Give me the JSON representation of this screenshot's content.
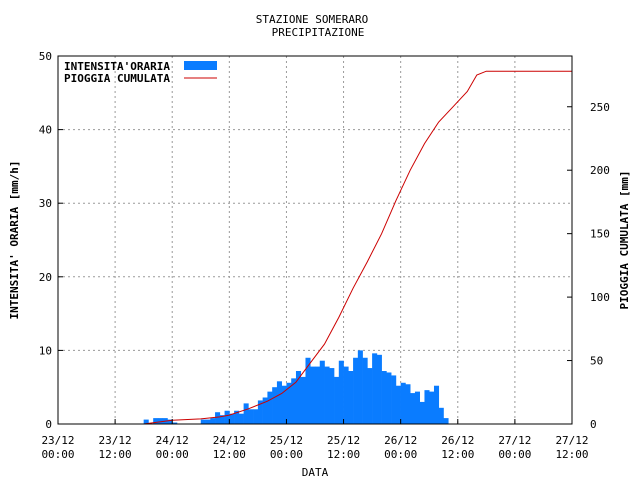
{
  "chart_data": {
    "type": "bar+line",
    "title": "STAZIONE SOMERARO",
    "subtitle": "PRECIPITAZIONE",
    "xlabel": "DATA",
    "ylabel_left": "INTENSITA' ORARIA [mm/h]",
    "ylabel_right": "PIOGGIA CUMULATA [mm]",
    "ylim_left": [
      0,
      50
    ],
    "yticks_left": [
      0,
      10,
      20,
      30,
      40,
      50
    ],
    "ylim_right": [
      0,
      290
    ],
    "yticks_right": [
      0,
      50,
      100,
      150,
      200,
      250
    ],
    "xlim_hours": [
      0,
      96
    ],
    "x_ticks": [
      {
        "hour": 0,
        "line1": "23/12",
        "line2": "00:00"
      },
      {
        "hour": 12,
        "line1": "23/12",
        "line2": "12:00"
      },
      {
        "hour": 24,
        "line1": "24/12",
        "line2": "00:00"
      },
      {
        "hour": 36,
        "line1": "24/12",
        "line2": "12:00"
      },
      {
        "hour": 48,
        "line1": "25/12",
        "line2": "00:00"
      },
      {
        "hour": 60,
        "line1": "25/12",
        "line2": "12:00"
      },
      {
        "hour": 72,
        "line1": "26/12",
        "line2": "00:00"
      },
      {
        "hour": 84,
        "line1": "26/12",
        "line2": "12:00"
      },
      {
        "hour": 96,
        "line1": "27/12",
        "line2": "00:00"
      },
      {
        "hour": 108,
        "line1": "27/12",
        "line2": "12:00"
      }
    ],
    "grid": true,
    "legend_position": "top-left",
    "series": [
      {
        "name": "INTENSITA'ORARIA",
        "type": "bar",
        "color": "#0a7cff",
        "start_hour": 18,
        "values": [
          0.6,
          0,
          0.8,
          0.8,
          0.8,
          0.6,
          0.2,
          0,
          0,
          0,
          0,
          0,
          0.6,
          0.6,
          0.8,
          1.6,
          1.2,
          1.8,
          1.4,
          1.8,
          1.4,
          2.8,
          2.0,
          2.0,
          3.2,
          3.6,
          4.4,
          5.0,
          5.8,
          5.2,
          5.6,
          6.2,
          7.2,
          6.4,
          9.0,
          7.8,
          7.8,
          8.6,
          7.8,
          7.6,
          6.4,
          8.6,
          7.8,
          7.2,
          9.0,
          10.0,
          9.0,
          7.6,
          9.6,
          9.4,
          7.2,
          7.0,
          6.6,
          5.2,
          5.6,
          5.4,
          4.2,
          4.4,
          3.0,
          4.6,
          4.4,
          5.2,
          2.2,
          0.8
        ]
      },
      {
        "name": "PIOGGIA CUMULATA",
        "type": "line",
        "color": "#cc0000",
        "points": [
          [
            18,
            0
          ],
          [
            24,
            3
          ],
          [
            30,
            4
          ],
          [
            34,
            5.6
          ],
          [
            36,
            7
          ],
          [
            40,
            12
          ],
          [
            44,
            18
          ],
          [
            47,
            24
          ],
          [
            50,
            33
          ],
          [
            53,
            48
          ],
          [
            56,
            63
          ],
          [
            59,
            84
          ],
          [
            62,
            107
          ],
          [
            65,
            128
          ],
          [
            68,
            150
          ],
          [
            71,
            176
          ],
          [
            74,
            200
          ],
          [
            77,
            221
          ],
          [
            80,
            238
          ],
          [
            83,
            250
          ],
          [
            86,
            262
          ],
          [
            88,
            275
          ],
          [
            90,
            278
          ],
          [
            100,
            278
          ],
          [
            108,
            278
          ]
        ]
      }
    ]
  }
}
